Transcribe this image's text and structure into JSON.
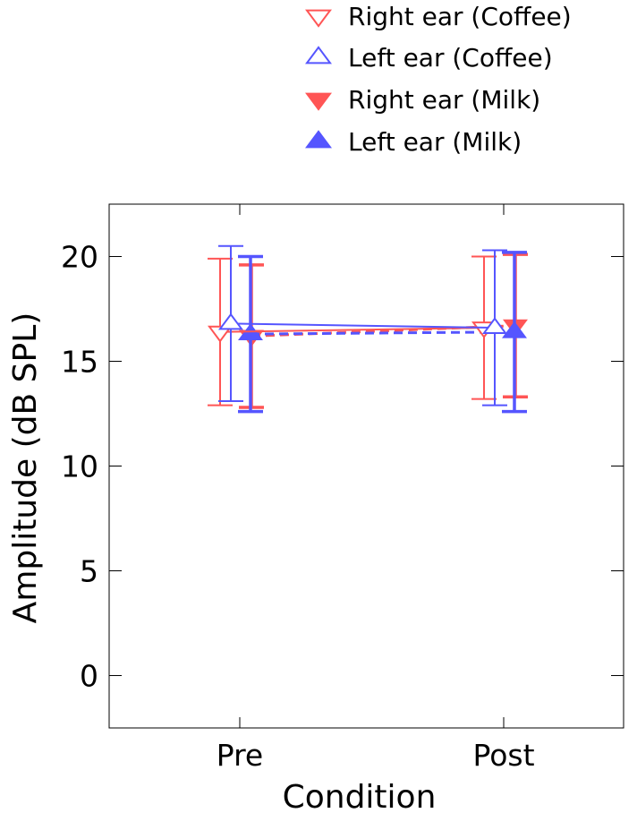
{
  "chart_data": {
    "type": "line",
    "xlabel": "Condition",
    "ylabel": "Amplitude (dB SPL)",
    "categories": [
      "Pre",
      "Post"
    ],
    "ylim": [
      -2.5,
      22.5
    ],
    "yticks": [
      "0",
      "5",
      "10",
      "15",
      "20"
    ],
    "grid": false,
    "legend_position": "top-right, above plot",
    "series": [
      {
        "name": "Right ear (Coffee)",
        "values": [
          16.4,
          16.6
        ],
        "error": [
          3.5,
          3.4
        ],
        "marker": "triangle-down",
        "filled": false,
        "line": "solid",
        "color": "#ff5555"
      },
      {
        "name": "Left ear (Coffee)",
        "values": [
          16.8,
          16.6
        ],
        "error": [
          3.7,
          3.7
        ],
        "marker": "triangle-up",
        "filled": false,
        "line": "solid",
        "color": "#5555ff"
      },
      {
        "name": "Right ear (Milk)",
        "values": [
          16.2,
          16.7
        ],
        "error": [
          3.4,
          3.4
        ],
        "marker": "triangle-down",
        "filled": true,
        "line": "dashed",
        "color": "#ff5555"
      },
      {
        "name": "Left ear (Milk)",
        "values": [
          16.3,
          16.4
        ],
        "error": [
          3.7,
          3.8
        ],
        "marker": "triangle-up",
        "filled": true,
        "line": "dashed",
        "color": "#5555ff"
      }
    ]
  }
}
